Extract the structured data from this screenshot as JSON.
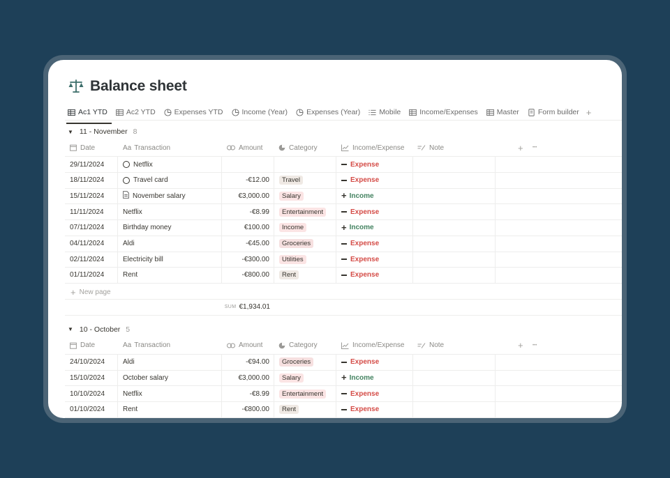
{
  "page": {
    "title": "Balance sheet",
    "title_icon": "scale-icon"
  },
  "tabs": [
    {
      "label": "Ac1 YTD",
      "icon": "table-icon",
      "active": true
    },
    {
      "label": "Ac2 YTD",
      "icon": "table-icon"
    },
    {
      "label": "Expenses YTD",
      "icon": "chart-icon"
    },
    {
      "label": "Income (Year)",
      "icon": "chart-icon"
    },
    {
      "label": "Expenses (Year)",
      "icon": "chart-icon"
    },
    {
      "label": "Mobile",
      "icon": "list-icon"
    },
    {
      "label": "Income/Expenses",
      "icon": "table-icon"
    },
    {
      "label": "Master",
      "icon": "table-icon"
    },
    {
      "label": "Form builder",
      "icon": "form-icon"
    }
  ],
  "columns": {
    "date": "Date",
    "transaction": "Transaction",
    "amount": "Amount",
    "category": "Category",
    "income_expense": "Income/Expense",
    "note": "Note",
    "aa": "Aa"
  },
  "labels": {
    "new_page": "New page",
    "sum_label": "SUM",
    "expense": "Expense",
    "income": "Income"
  },
  "groups": [
    {
      "name": "11 - November",
      "count": "8",
      "sum": "€1,934.01",
      "rows": [
        {
          "date": "29/11/2024",
          "transaction": "Netflix",
          "amount": "",
          "category": "",
          "type": "Expense",
          "icon": "ring"
        },
        {
          "date": "18/11/2024",
          "transaction": "Travel card",
          "amount": "-€12.00",
          "category": "Travel",
          "type": "Expense",
          "icon": "ring"
        },
        {
          "date": "15/11/2024",
          "transaction": "November salary",
          "amount": "€3,000.00",
          "category": "Salary",
          "type": "Income",
          "icon": "doc"
        },
        {
          "date": "11/11/2024",
          "transaction": "Netflix",
          "amount": "-€8.99",
          "category": "Entertainment",
          "type": "Expense"
        },
        {
          "date": "07/11/2024",
          "transaction": "Birthday money",
          "amount": "€100.00",
          "category": "Income",
          "type": "Income"
        },
        {
          "date": "04/11/2024",
          "transaction": "Aldi",
          "amount": "-€45.00",
          "category": "Groceries",
          "type": "Expense"
        },
        {
          "date": "02/11/2024",
          "transaction": "Electricity bill",
          "amount": "-€300.00",
          "category": "Utilities",
          "type": "Expense"
        },
        {
          "date": "01/11/2024",
          "transaction": "Rent",
          "amount": "-€800.00",
          "category": "Rent",
          "type": "Expense"
        }
      ]
    },
    {
      "name": "10 - October",
      "count": "5",
      "rows": [
        {
          "date": "24/10/2024",
          "transaction": "Aldi",
          "amount": "-€94.00",
          "category": "Groceries",
          "type": "Expense"
        },
        {
          "date": "15/10/2024",
          "transaction": "October salary",
          "amount": "€3,000.00",
          "category": "Salary",
          "type": "Income"
        },
        {
          "date": "10/10/2024",
          "transaction": "Netflix",
          "amount": "-€8.99",
          "category": "Entertainment",
          "type": "Expense"
        },
        {
          "date": "01/10/2024",
          "transaction": "Rent",
          "amount": "-€800.00",
          "category": "Rent",
          "type": "Expense"
        }
      ]
    }
  ],
  "colors": {
    "background": "#1e4058",
    "expense": "#d44c47",
    "income": "#448361",
    "tag_pink": "#fbe4e4",
    "tag_gray": "#e9e8e6"
  }
}
